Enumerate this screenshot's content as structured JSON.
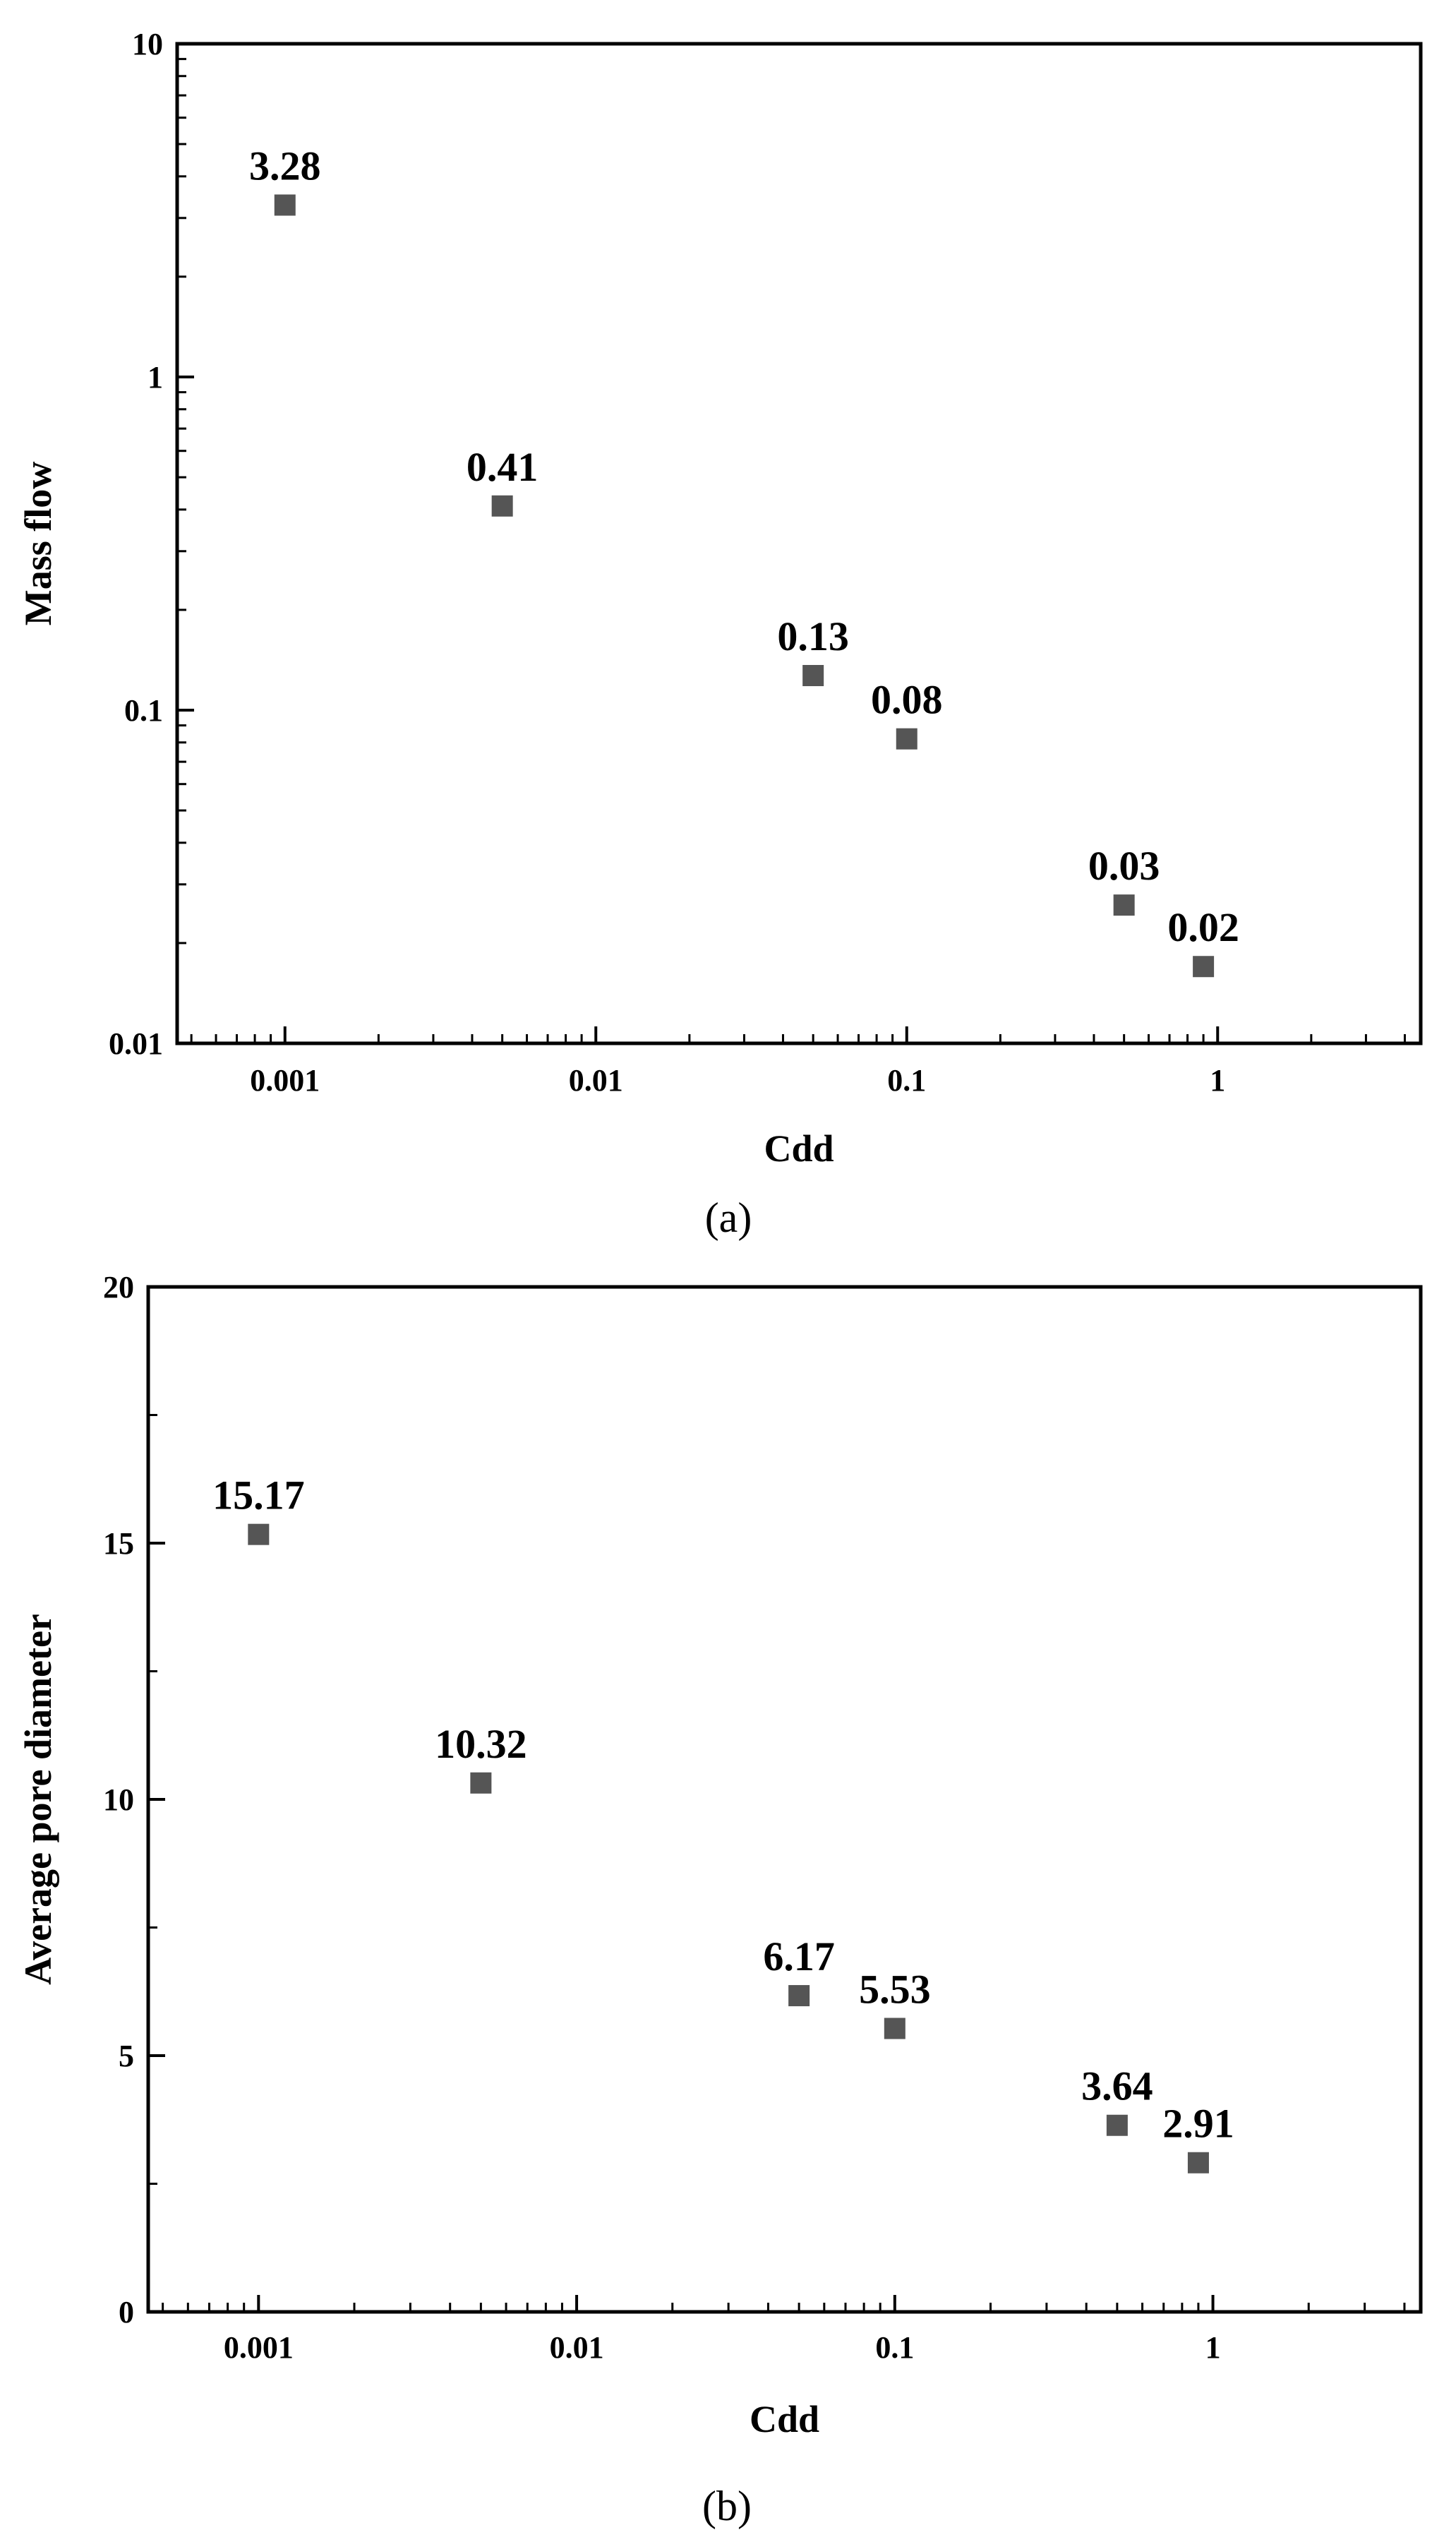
{
  "chart_data": [
    {
      "panel": "a",
      "type": "scatter",
      "panel_label": "(a)",
      "xlabel": "Cdd",
      "ylabel": "Mass flow",
      "xscale": "log",
      "yscale": "log",
      "xlim": [
        0.00045,
        4.5
      ],
      "ylim": [
        0.01,
        10
      ],
      "xticks": [
        0.001,
        0.01,
        0.1,
        1
      ],
      "xtick_labels": [
        "0.001",
        "0.01",
        "0.1",
        "1"
      ],
      "yticks": [
        0.01,
        0.1,
        1,
        10
      ],
      "ytick_labels": [
        "0.01",
        "0.1",
        "1",
        "10"
      ],
      "series": [
        {
          "name": "Mass flow",
          "marker": "square",
          "color": "#555555",
          "x": [
            0.001,
            0.005,
            0.05,
            0.1,
            0.5,
            0.9
          ],
          "y": [
            3.28,
            0.41,
            0.127,
            0.082,
            0.026,
            0.017
          ],
          "labels": [
            "3.28",
            "0.41",
            "0.13",
            "0.08",
            "0.03",
            "0.02"
          ]
        }
      ]
    },
    {
      "panel": "b",
      "type": "scatter",
      "panel_label": "(b)",
      "xlabel": "Cdd",
      "ylabel": "Average pore diameter",
      "xscale": "log",
      "yscale": "linear",
      "xlim": [
        0.00045,
        4.5
      ],
      "ylim": [
        0,
        20
      ],
      "xticks": [
        0.001,
        0.01,
        0.1,
        1
      ],
      "xtick_labels": [
        "0.001",
        "0.01",
        "0.1",
        "1"
      ],
      "yticks": [
        0,
        5,
        10,
        15,
        20
      ],
      "ytick_labels": [
        "0",
        "5",
        "10",
        "15",
        "20"
      ],
      "series": [
        {
          "name": "Average pore diameter",
          "marker": "square",
          "color": "#555555",
          "x": [
            0.001,
            0.005,
            0.05,
            0.1,
            0.5,
            0.9
          ],
          "y": [
            15.17,
            10.32,
            6.17,
            5.53,
            3.64,
            2.91
          ],
          "labels": [
            "15.17",
            "10.32",
            "6.17",
            "5.53",
            "3.64",
            "2.91"
          ]
        }
      ]
    }
  ]
}
